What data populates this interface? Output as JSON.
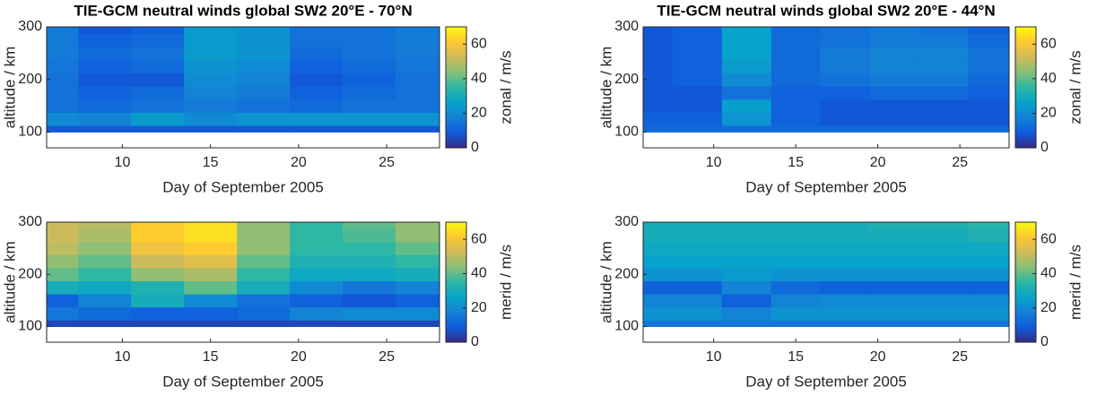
{
  "chart_data": [
    {
      "type": "heatmap",
      "title": "TIE-GCM neutral winds global SW2 20°E - 70°N",
      "xlabel": "Day of September 2005",
      "ylabel": "altitude / km",
      "colorbar_label": "zonal / m/s",
      "colormap": "parula",
      "x": [
        6,
        9,
        12,
        15,
        18,
        21,
        24,
        27
      ],
      "y": [
        100,
        125,
        150,
        175,
        200,
        225,
        250,
        275,
        300
      ],
      "values": [
        [
          8,
          8,
          8,
          8,
          8,
          8,
          8,
          8
        ],
        [
          20,
          18,
          24,
          20,
          22,
          22,
          22,
          22
        ],
        [
          14,
          12,
          14,
          16,
          14,
          12,
          14,
          14
        ],
        [
          14,
          10,
          12,
          18,
          16,
          10,
          12,
          14
        ],
        [
          14,
          8,
          8,
          20,
          18,
          8,
          10,
          14
        ],
        [
          15,
          10,
          12,
          22,
          20,
          10,
          12,
          15
        ],
        [
          16,
          12,
          14,
          24,
          22,
          12,
          14,
          16
        ],
        [
          16,
          10,
          12,
          24,
          22,
          14,
          14,
          16
        ],
        [
          16,
          8,
          10,
          24,
          22,
          14,
          14,
          16
        ]
      ],
      "xlim": [
        5.7,
        28
      ],
      "ylim": [
        70,
        300
      ],
      "xticks": [
        10,
        15,
        20,
        25
      ],
      "yticks": [
        100,
        200,
        300
      ],
      "clim": [
        0,
        70
      ],
      "cticks": [
        0,
        20,
        40,
        60
      ]
    },
    {
      "type": "heatmap",
      "title": "TIE-GCM neutral winds global SW2 20°E - 44°N",
      "xlabel": "Day of September 2005",
      "ylabel": "altitude / km",
      "colorbar_label": "zonal / m/s",
      "colormap": "parula",
      "x": [
        6,
        9,
        12,
        15,
        18,
        21,
        24,
        27
      ],
      "y": [
        100,
        125,
        150,
        175,
        200,
        225,
        250,
        275,
        300
      ],
      "values": [
        [
          12,
          12,
          12,
          12,
          12,
          12,
          12,
          12
        ],
        [
          10,
          10,
          22,
          10,
          8,
          8,
          8,
          8
        ],
        [
          8,
          8,
          25,
          10,
          8,
          8,
          8,
          8
        ],
        [
          8,
          8,
          14,
          10,
          10,
          12,
          12,
          10
        ],
        [
          8,
          10,
          20,
          12,
          14,
          16,
          16,
          12
        ],
        [
          8,
          10,
          24,
          12,
          16,
          18,
          18,
          14
        ],
        [
          8,
          10,
          26,
          12,
          16,
          18,
          18,
          14
        ],
        [
          8,
          10,
          26,
          12,
          14,
          16,
          16,
          12
        ],
        [
          8,
          10,
          26,
          12,
          14,
          16,
          14,
          10
        ]
      ],
      "xlim": [
        5.7,
        28
      ],
      "ylim": [
        70,
        300
      ],
      "xticks": [
        10,
        15,
        20,
        25
      ],
      "yticks": [
        100,
        200,
        300
      ],
      "clim": [
        0,
        70
      ],
      "cticks": [
        0,
        20,
        40,
        60
      ]
    },
    {
      "type": "heatmap",
      "xlabel": "Day of September 2005",
      "ylabel": "altitude / km",
      "colorbar_label": "merid / m/s",
      "colormap": "parula",
      "x": [
        6,
        9,
        12,
        15,
        18,
        21,
        24,
        27
      ],
      "y": [
        100,
        125,
        150,
        175,
        200,
        225,
        250,
        275,
        300
      ],
      "values": [
        [
          5,
          5,
          5,
          5,
          5,
          5,
          5,
          5
        ],
        [
          15,
          12,
          10,
          10,
          12,
          18,
          20,
          20
        ],
        [
          10,
          18,
          30,
          20,
          14,
          10,
          8,
          10
        ],
        [
          30,
          28,
          32,
          40,
          30,
          20,
          15,
          18
        ],
        [
          40,
          35,
          45,
          48,
          35,
          28,
          28,
          30
        ],
        [
          45,
          40,
          52,
          55,
          40,
          32,
          32,
          35
        ],
        [
          50,
          45,
          58,
          62,
          45,
          35,
          35,
          40
        ],
        [
          52,
          48,
          62,
          65,
          45,
          35,
          38,
          45
        ],
        [
          52,
          50,
          62,
          65,
          45,
          35,
          40,
          45
        ]
      ],
      "xlim": [
        5.7,
        28
      ],
      "ylim": [
        70,
        300
      ],
      "xticks": [
        10,
        15,
        20,
        25
      ],
      "yticks": [
        100,
        200,
        300
      ],
      "clim": [
        0,
        70
      ],
      "cticks": [
        0,
        20,
        40,
        60
      ]
    },
    {
      "type": "heatmap",
      "xlabel": "Day of September 2005",
      "ylabel": "altitude / km",
      "colorbar_label": "merid / m/s",
      "colormap": "parula",
      "x": [
        6,
        9,
        12,
        15,
        18,
        21,
        24,
        27
      ],
      "y": [
        100,
        125,
        150,
        175,
        200,
        225,
        250,
        275,
        300
      ],
      "values": [
        [
          15,
          15,
          15,
          15,
          15,
          15,
          15,
          15
        ],
        [
          22,
          22,
          18,
          22,
          22,
          22,
          22,
          22
        ],
        [
          18,
          18,
          10,
          18,
          20,
          20,
          20,
          20
        ],
        [
          10,
          10,
          18,
          12,
          10,
          10,
          10,
          10
        ],
        [
          22,
          22,
          24,
          22,
          22,
          22,
          22,
          22
        ],
        [
          26,
          26,
          26,
          26,
          26,
          26,
          26,
          26
        ],
        [
          28,
          28,
          28,
          28,
          28,
          28,
          28,
          28
        ],
        [
          30,
          30,
          30,
          30,
          30,
          30,
          30,
          32
        ],
        [
          30,
          30,
          30,
          30,
          30,
          32,
          32,
          34
        ]
      ],
      "xlim": [
        5.7,
        28
      ],
      "ylim": [
        70,
        300
      ],
      "xticks": [
        10,
        15,
        20,
        25
      ],
      "yticks": [
        100,
        200,
        300
      ],
      "clim": [
        0,
        70
      ],
      "cticks": [
        0,
        20,
        40,
        60
      ]
    }
  ]
}
